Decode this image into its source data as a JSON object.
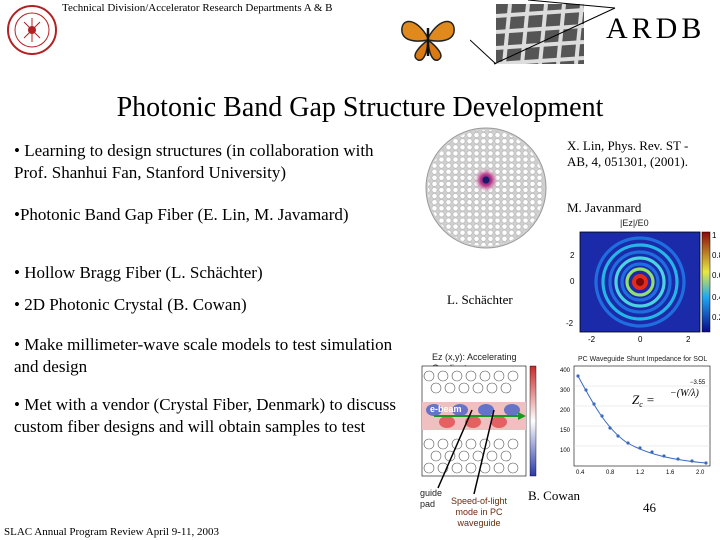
{
  "header": {
    "department": "Technical Division/Accelerator Research Departments A & B",
    "logo_icon": "slac-seal-logo",
    "butterfly_icon": "butterfly-image",
    "photonic_icon": "photonic-crystal-photo",
    "ardb": "ARDB"
  },
  "slide": {
    "title": "Photonic Band Gap Structure Development",
    "bullets": {
      "b1": "• Learning to design structures (in collaboration with Prof. Shanhui Fan, Stanford University)",
      "b2": "•Photonic Band Gap Fiber (E. Lin, M. Javamard)",
      "b3": "• Hollow Bragg Fiber (L. Schächter)",
      "b4": "• 2D Photonic Crystal (B. Cowan)",
      "b5": "• Make millimeter-wave scale models to test simulation and design",
      "b6": "• Met with a vendor (Crystal Fiber, Denmark) to discuss custom fiber designs and will obtain samples to test"
    },
    "refs": {
      "lin": "X. Lin, Phys. Rev. ST -AB, 4, 051301, (2001).",
      "javanmard": "M. Javanmard",
      "schachter": "L. Schächter",
      "cowan": "B. Cowan"
    },
    "plot_labels": {
      "ez": "|Ez|/E0",
      "beam": "e-beam",
      "guide": "guide pad",
      "speed": "Speed-of-light mode in PC waveguide",
      "accel": "Ez (x,y): Accelerating Gradient",
      "imp": "PC Waveguide Shunt Impedance for SOL Mode"
    },
    "footer": "SLAC Annual Program Review April 9-11, 2003",
    "page_number": "46"
  }
}
